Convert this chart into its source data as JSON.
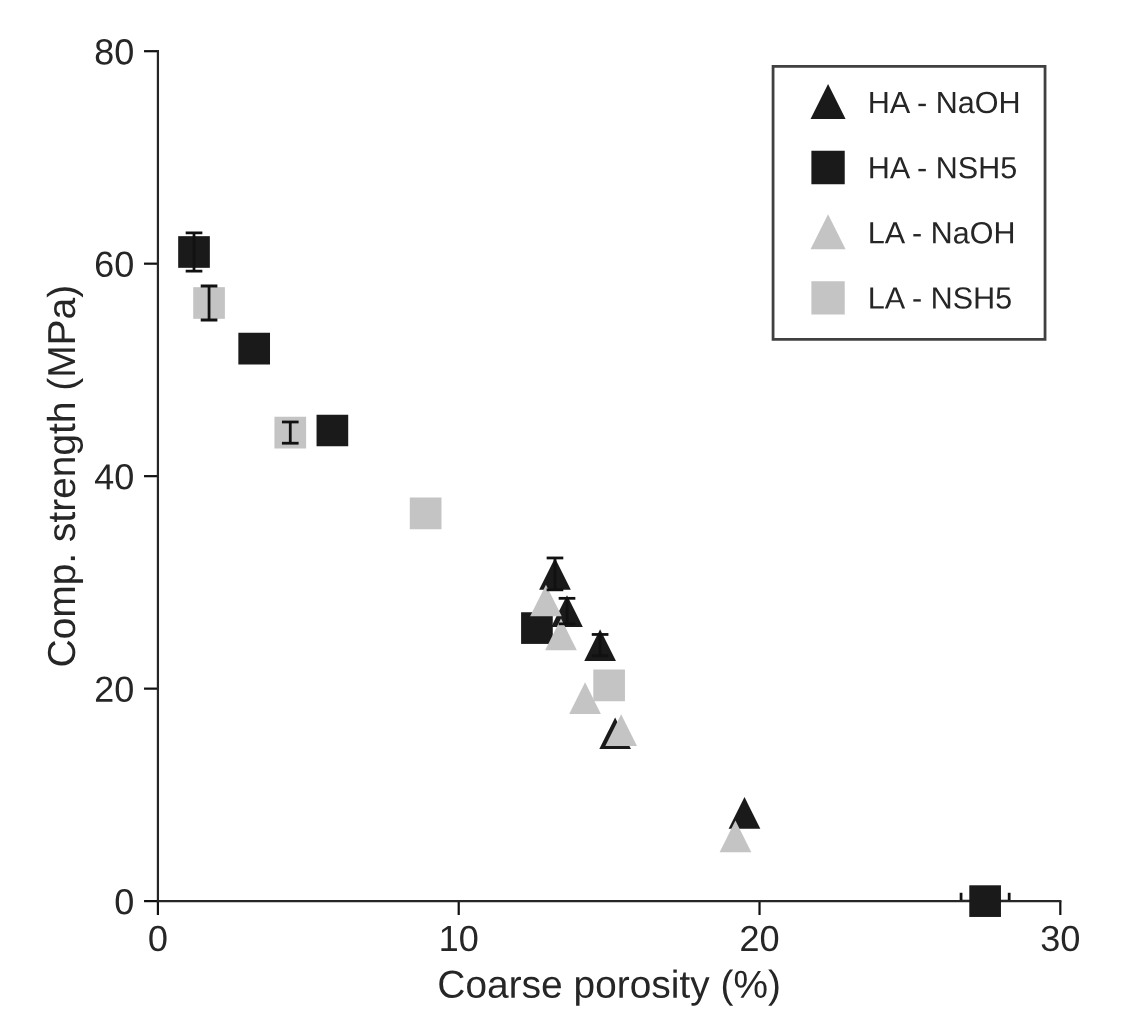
{
  "chart_data": {
    "type": "scatter",
    "xlabel": "Coarse porosity (%)",
    "ylabel": "Comp. strength (MPa)",
    "xlim": [
      0,
      30
    ],
    "xticks": [
      0,
      10,
      20,
      30
    ],
    "ylim": [
      0,
      80
    ],
    "yticks": [
      0,
      20,
      40,
      60,
      80
    ],
    "grid": false,
    "legend": "top right",
    "series": [
      {
        "name": "HA - NaOH",
        "color": "#1a1a1a",
        "marker": "triangle",
        "x": [
          13.2,
          13.6,
          14.7,
          15.2,
          19.5
        ],
        "values": [
          30.8,
          27.3,
          24.1,
          15.8,
          8.3
        ],
        "errors": [
          1.5,
          1.2,
          1.0,
          null,
          null
        ]
      },
      {
        "name": "HA - NSH5",
        "color": "#1a1a1a",
        "marker": "square",
        "x": [
          1.2,
          3.2,
          5.8,
          12.6,
          27.5
        ],
        "values": [
          61.1,
          52.0,
          44.3,
          25.7,
          0
        ],
        "errors": [
          1.8,
          null,
          null,
          null,
          null
        ],
        "xerrors": [
          null,
          null,
          null,
          null,
          0.8
        ]
      },
      {
        "name": "LA - NaOH",
        "color": "#c4c4c4",
        "marker": "triangle",
        "x": [
          12.9,
          13.4,
          14.2,
          15.4,
          19.2
        ],
        "values": [
          28.3,
          25.1,
          19.1,
          16.1,
          6.1
        ]
      },
      {
        "name": "LA - NSH5",
        "color": "#c4c4c4",
        "marker": "square",
        "x": [
          1.7,
          4.4,
          8.9,
          15.0
        ],
        "values": [
          56.3,
          44.1,
          36.5,
          20.3
        ],
        "errors": [
          1.6,
          1.0,
          null,
          null
        ]
      }
    ]
  }
}
